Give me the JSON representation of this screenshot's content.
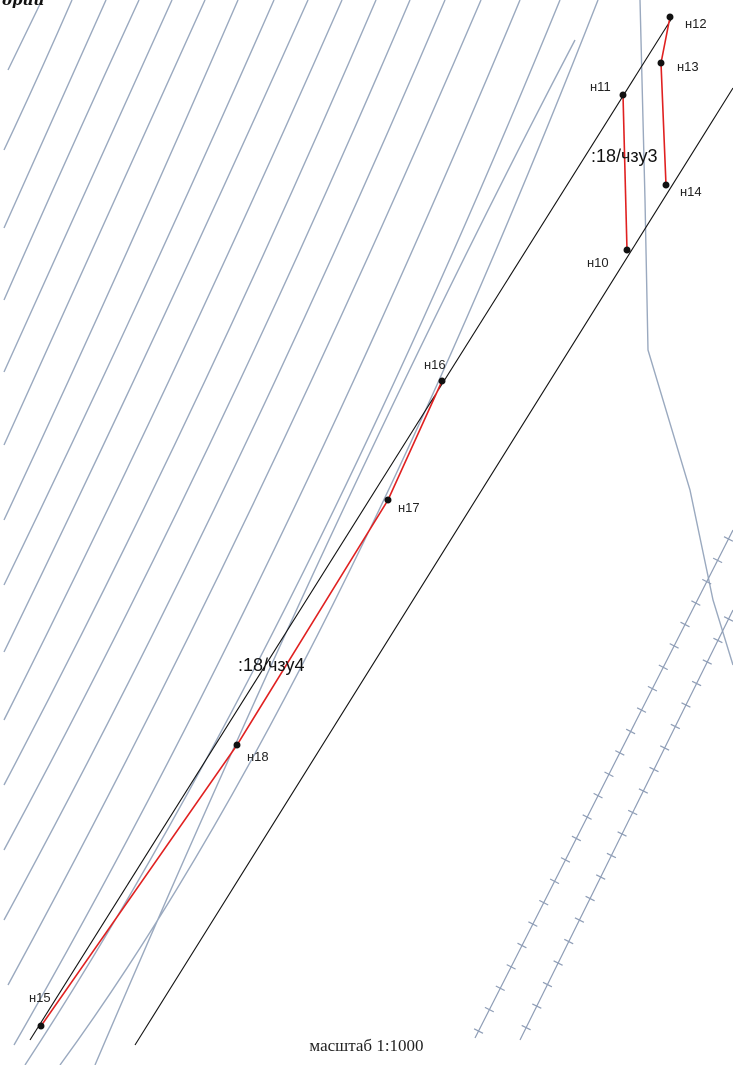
{
  "header": {
    "corner_text": "ории"
  },
  "footer": {
    "scale_label": "масштаб 1:1000"
  },
  "parcels": [
    {
      "id": "zone-3",
      "label": ":18/чзу3"
    },
    {
      "id": "zone-4",
      "label": ":18/чзу4"
    }
  ],
  "points": {
    "n10": "н10",
    "n11": "н11",
    "n12": "н12",
    "n13": "н13",
    "n14": "н14",
    "n15": "н15",
    "n16": "н16",
    "n17": "н17",
    "n18": "н18"
  },
  "colors": {
    "contour": "#9aa9bf",
    "boundary": "#e02020",
    "line": "#111111",
    "rail": "#8e9db6",
    "point": "#111111"
  }
}
